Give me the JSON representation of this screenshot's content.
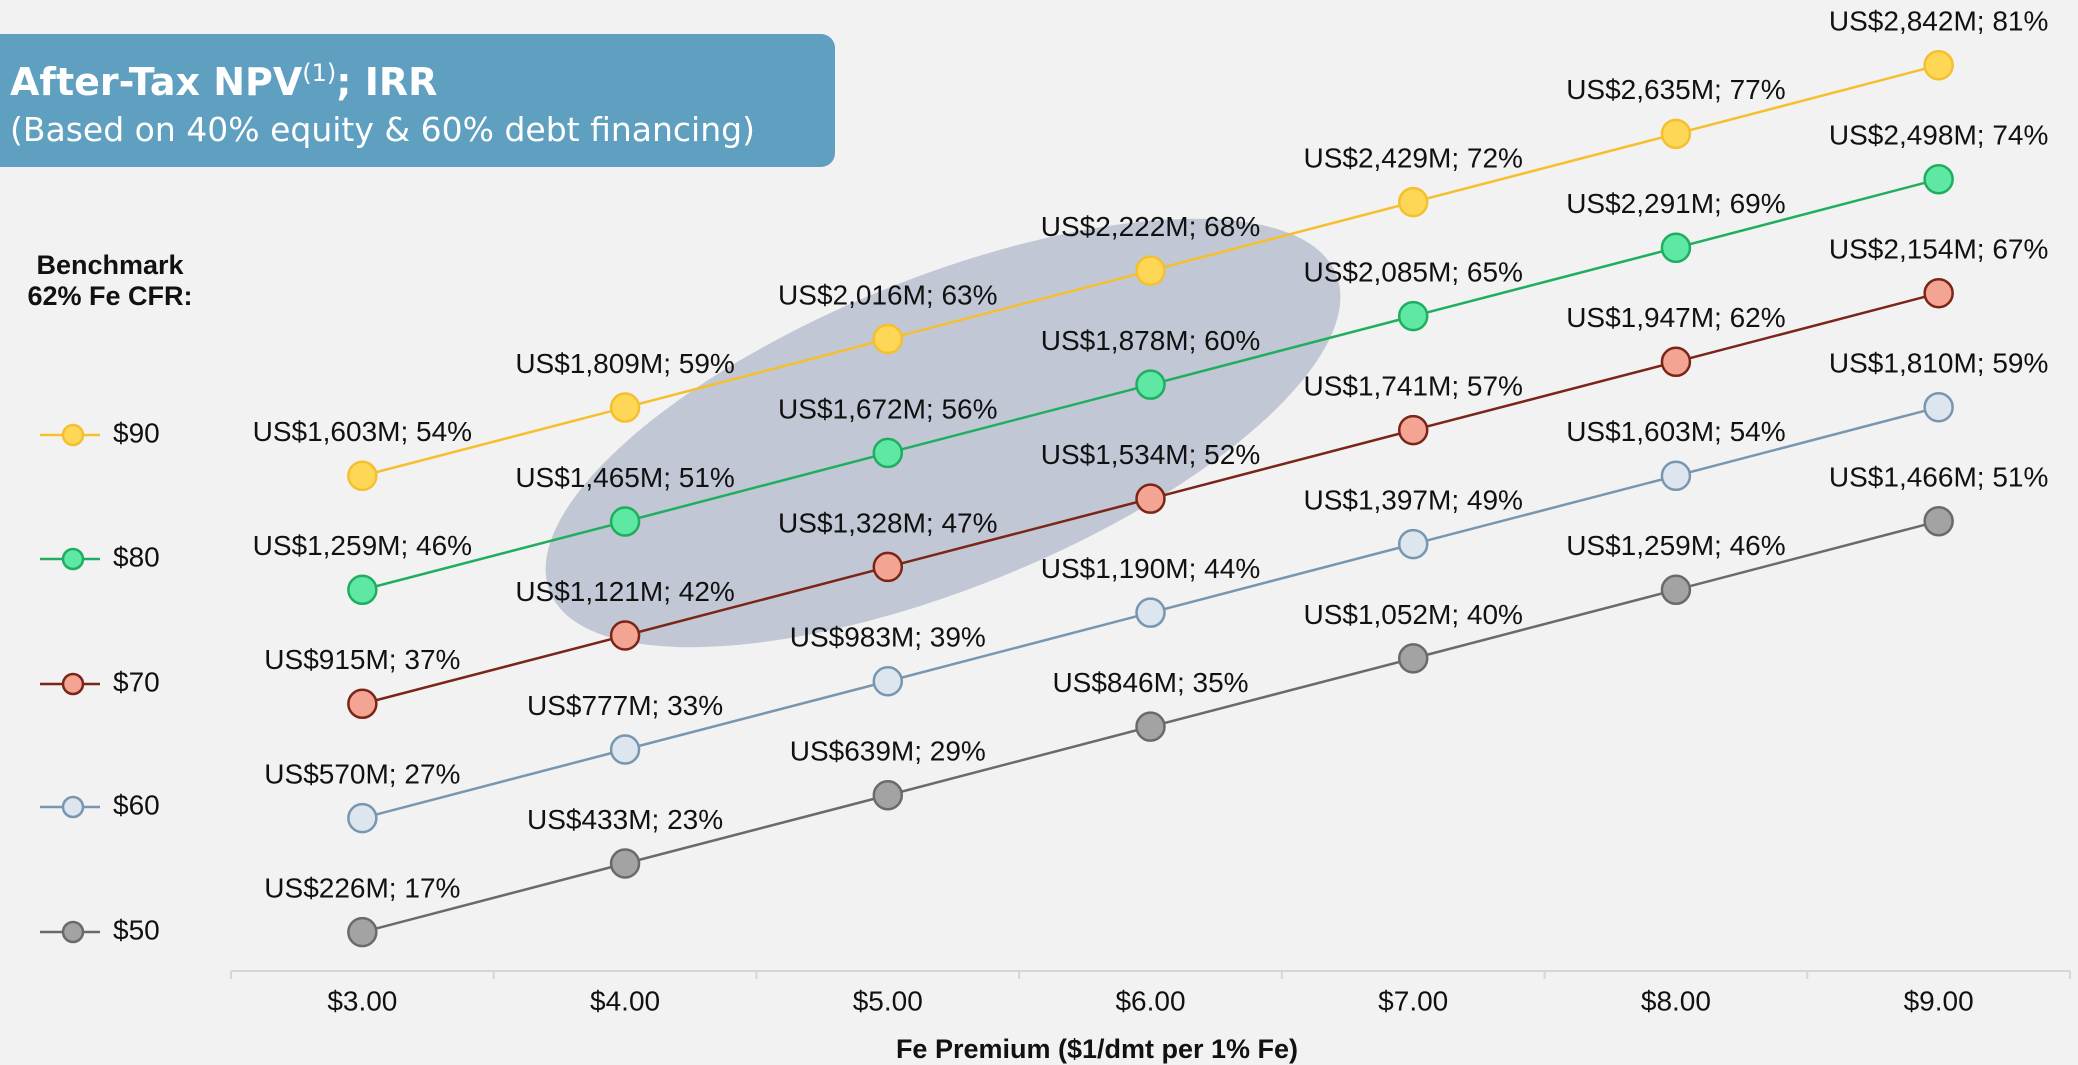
{
  "chart_data": {
    "type": "line",
    "title": "After-Tax NPV",
    "title_superscript": "(1)",
    "title_suffix": "; IRR",
    "subtitle": "(Based on 40% equity & 60% debt financing)",
    "legend_title": "Benchmark 62% Fe CFR:",
    "legend": "left",
    "x_label": "Fe Premium ($1/dmt per 1% Fe)",
    "categories": [
      "$3.00",
      "$4.00",
      "$5.00",
      "$6.00",
      "$7.00",
      "$8.00",
      "$9.00"
    ],
    "ylim": [
      0,
      2900
    ],
    "series": [
      {
        "name": "$90",
        "color": "#f5bf2e",
        "marker_fill": "#ffd757",
        "values": [
          1603,
          1809,
          2016,
          2222,
          2429,
          2635,
          2842
        ],
        "value_labels": [
          "US$1,603M; 54%",
          "US$1,809M; 59%",
          "US$2,016M; 63%",
          "US$2,222M; 68%",
          "US$2,429M; 72%",
          "US$2,635M; 77%",
          "US$2,842M; 81%"
        ]
      },
      {
        "name": "$80",
        "color": "#1fae60",
        "marker_fill": "#5ee8a3",
        "values": [
          1259,
          1465,
          1672,
          1878,
          2085,
          2291,
          2498
        ],
        "value_labels": [
          "US$1,259M; 46%",
          "US$1,465M; 51%",
          "US$1,672M; 56%",
          "US$1,878M; 60%",
          "US$2,085M; 65%",
          "US$2,291M; 69%",
          "US$2,498M; 74%"
        ]
      },
      {
        "name": "$70",
        "color": "#7a2518",
        "marker_fill": "#f4a492",
        "values": [
          915,
          1121,
          1328,
          1534,
          1741,
          1947,
          2154
        ],
        "value_labels": [
          "US$915M; 37%",
          "US$1,121M; 42%",
          "US$1,328M; 47%",
          "US$1,534M; 52%",
          "US$1,741M; 57%",
          "US$1,947M; 62%",
          "US$2,154M; 67%"
        ]
      },
      {
        "name": "$60",
        "color": "#7896b0",
        "marker_fill": "#dde6ee",
        "values": [
          570,
          777,
          983,
          1190,
          1397,
          1603,
          1810
        ],
        "value_labels": [
          "US$570M; 27%",
          "US$777M; 33%",
          "US$983M; 39%",
          "US$1,190M; 44%",
          "US$1,397M; 49%",
          "US$1,603M; 54%",
          "US$1,810M; 59%"
        ]
      },
      {
        "name": "$50",
        "color": "#6a6a6a",
        "marker_fill": "#a3a3a3",
        "values": [
          226,
          433,
          639,
          846,
          1052,
          1259,
          1466
        ],
        "value_labels": [
          "US$226M; 17%",
          "US$433M; 23%",
          "US$639M; 29%",
          "US$846M; 35%",
          "US$1,052M; 40%",
          "US$1,259M; 46%",
          "US$1,466M; 51%"
        ]
      }
    ]
  }
}
